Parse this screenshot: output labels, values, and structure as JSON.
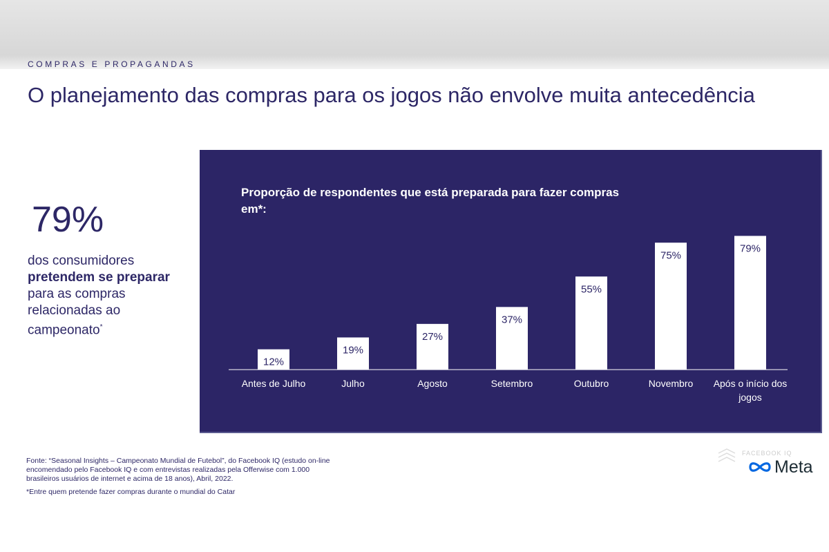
{
  "header": {
    "eyebrow": "COMPRAS E PROPAGANDAS",
    "title": "O planejamento das compras para os jogos não envolve muita antecedência"
  },
  "stat": {
    "value": "79%",
    "desc_part1": "dos consumidores",
    "desc_bold": "pretendem se preparar",
    "desc_part2": "para as compras relacionadas ao campeonato",
    "desc_mark": "*"
  },
  "colors": {
    "panel_bg": "#2c2566",
    "bar": "#ffffff",
    "text_primary": "#2d2766",
    "meta_blue": "#0668e1"
  },
  "chart_data": {
    "type": "bar",
    "title": "Proporção de respondentes que está preparada para fazer compras em*:",
    "categories": [
      "Antes de Julho",
      "Julho",
      "Agosto",
      "Setembro",
      "Outubro",
      "Novembro",
      "Após o início dos jogos"
    ],
    "values": [
      12,
      19,
      27,
      37,
      55,
      75,
      79
    ],
    "value_labels": [
      "12%",
      "19%",
      "27%",
      "37%",
      "55%",
      "75%",
      "79%"
    ],
    "grid": false,
    "legend": "none"
  },
  "footnote": {
    "source": "Fonte: “Seasonal Insights – Campeonato Mundial de Futebol”, do Facebook IQ (estudo on-line encomendado pelo Facebook IQ e com entrevistas realizadas pela Offerwise com 1.000 brasileiros usuários de internet e acima de 18 anos), Abril, 2022.",
    "note": "*Entre quem pretende fazer compras durante o mundial do Catar"
  },
  "brand": {
    "logo_text": "Meta",
    "faded_text": "FACEBOOK IQ"
  }
}
